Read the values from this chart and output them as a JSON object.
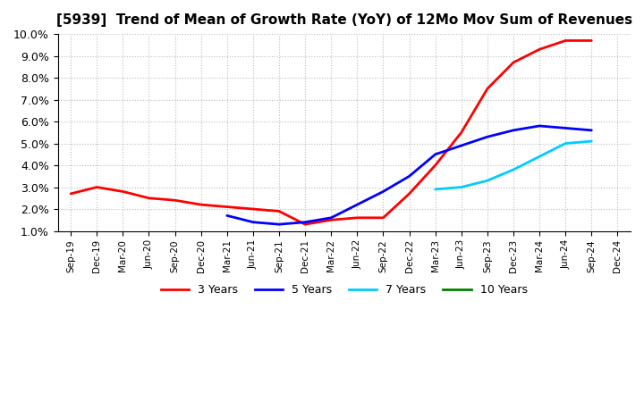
{
  "title": "[5939]  Trend of Mean of Growth Rate (YoY) of 12Mo Mov Sum of Revenues",
  "ylim": [
    0.01,
    0.1
  ],
  "yticks": [
    0.01,
    0.02,
    0.03,
    0.04,
    0.05,
    0.06,
    0.07,
    0.08,
    0.09,
    0.1
  ],
  "ytick_labels": [
    "1.0%",
    "2.0%",
    "3.0%",
    "4.0%",
    "5.0%",
    "6.0%",
    "7.0%",
    "8.0%",
    "9.0%",
    "10.0%"
  ],
  "background_color": "#ffffff",
  "grid_color": "#aaaaaa",
  "title_fontsize": 11,
  "x_tick_labels": [
    "Sep-19",
    "Dec-19",
    "Mar-20",
    "Jun-20",
    "Sep-20",
    "Dec-20",
    "Mar-21",
    "Jun-21",
    "Sep-21",
    "Dec-21",
    "Mar-22",
    "Jun-22",
    "Sep-22",
    "Dec-22",
    "Mar-23",
    "Jun-23",
    "Sep-23",
    "Dec-23",
    "Mar-24",
    "Jun-24",
    "Sep-24",
    "Dec-24"
  ],
  "series": [
    {
      "name": "3 Years",
      "color": "#ff0000",
      "x_labels": [
        "Sep-19",
        "Dec-19",
        "Mar-20",
        "Jun-20",
        "Sep-20",
        "Dec-20",
        "Mar-21",
        "Jun-21",
        "Sep-21",
        "Dec-21",
        "Mar-22",
        "Jun-22",
        "Sep-22",
        "Dec-22",
        "Mar-23",
        "Jun-23",
        "Sep-23",
        "Dec-23",
        "Mar-24",
        "Jun-24",
        "Sep-24"
      ],
      "y": [
        0.027,
        0.03,
        0.028,
        0.025,
        0.024,
        0.022,
        0.021,
        0.02,
        0.019,
        0.013,
        0.015,
        0.016,
        0.016,
        0.027,
        0.04,
        0.055,
        0.075,
        0.087,
        0.093,
        0.097,
        0.097
      ]
    },
    {
      "name": "5 Years",
      "color": "#0000ff",
      "x_labels": [
        "Mar-21",
        "Jun-21",
        "Sep-21",
        "Dec-21",
        "Mar-22",
        "Jun-22",
        "Sep-22",
        "Dec-22",
        "Mar-23",
        "Jun-23",
        "Sep-23",
        "Dec-23",
        "Mar-24",
        "Jun-24",
        "Sep-24"
      ],
      "y": [
        0.017,
        0.014,
        0.013,
        0.014,
        0.016,
        0.022,
        0.028,
        0.035,
        0.045,
        0.049,
        0.053,
        0.056,
        0.058,
        0.057,
        0.056
      ]
    },
    {
      "name": "7 Years",
      "color": "#00ccff",
      "x_labels": [
        "Mar-23",
        "Jun-23",
        "Sep-23",
        "Dec-23",
        "Mar-24",
        "Jun-24",
        "Sep-24"
      ],
      "y": [
        0.029,
        0.03,
        0.033,
        0.038,
        0.044,
        0.05,
        0.051
      ]
    },
    {
      "name": "10 Years",
      "color": "#008000",
      "x_labels": [],
      "y": []
    }
  ],
  "legend": [
    {
      "label": "3 Years",
      "color": "#ff0000"
    },
    {
      "label": "5 Years",
      "color": "#0000ff"
    },
    {
      "label": "7 Years",
      "color": "#00ccff"
    },
    {
      "label": "10 Years",
      "color": "#008000"
    }
  ]
}
